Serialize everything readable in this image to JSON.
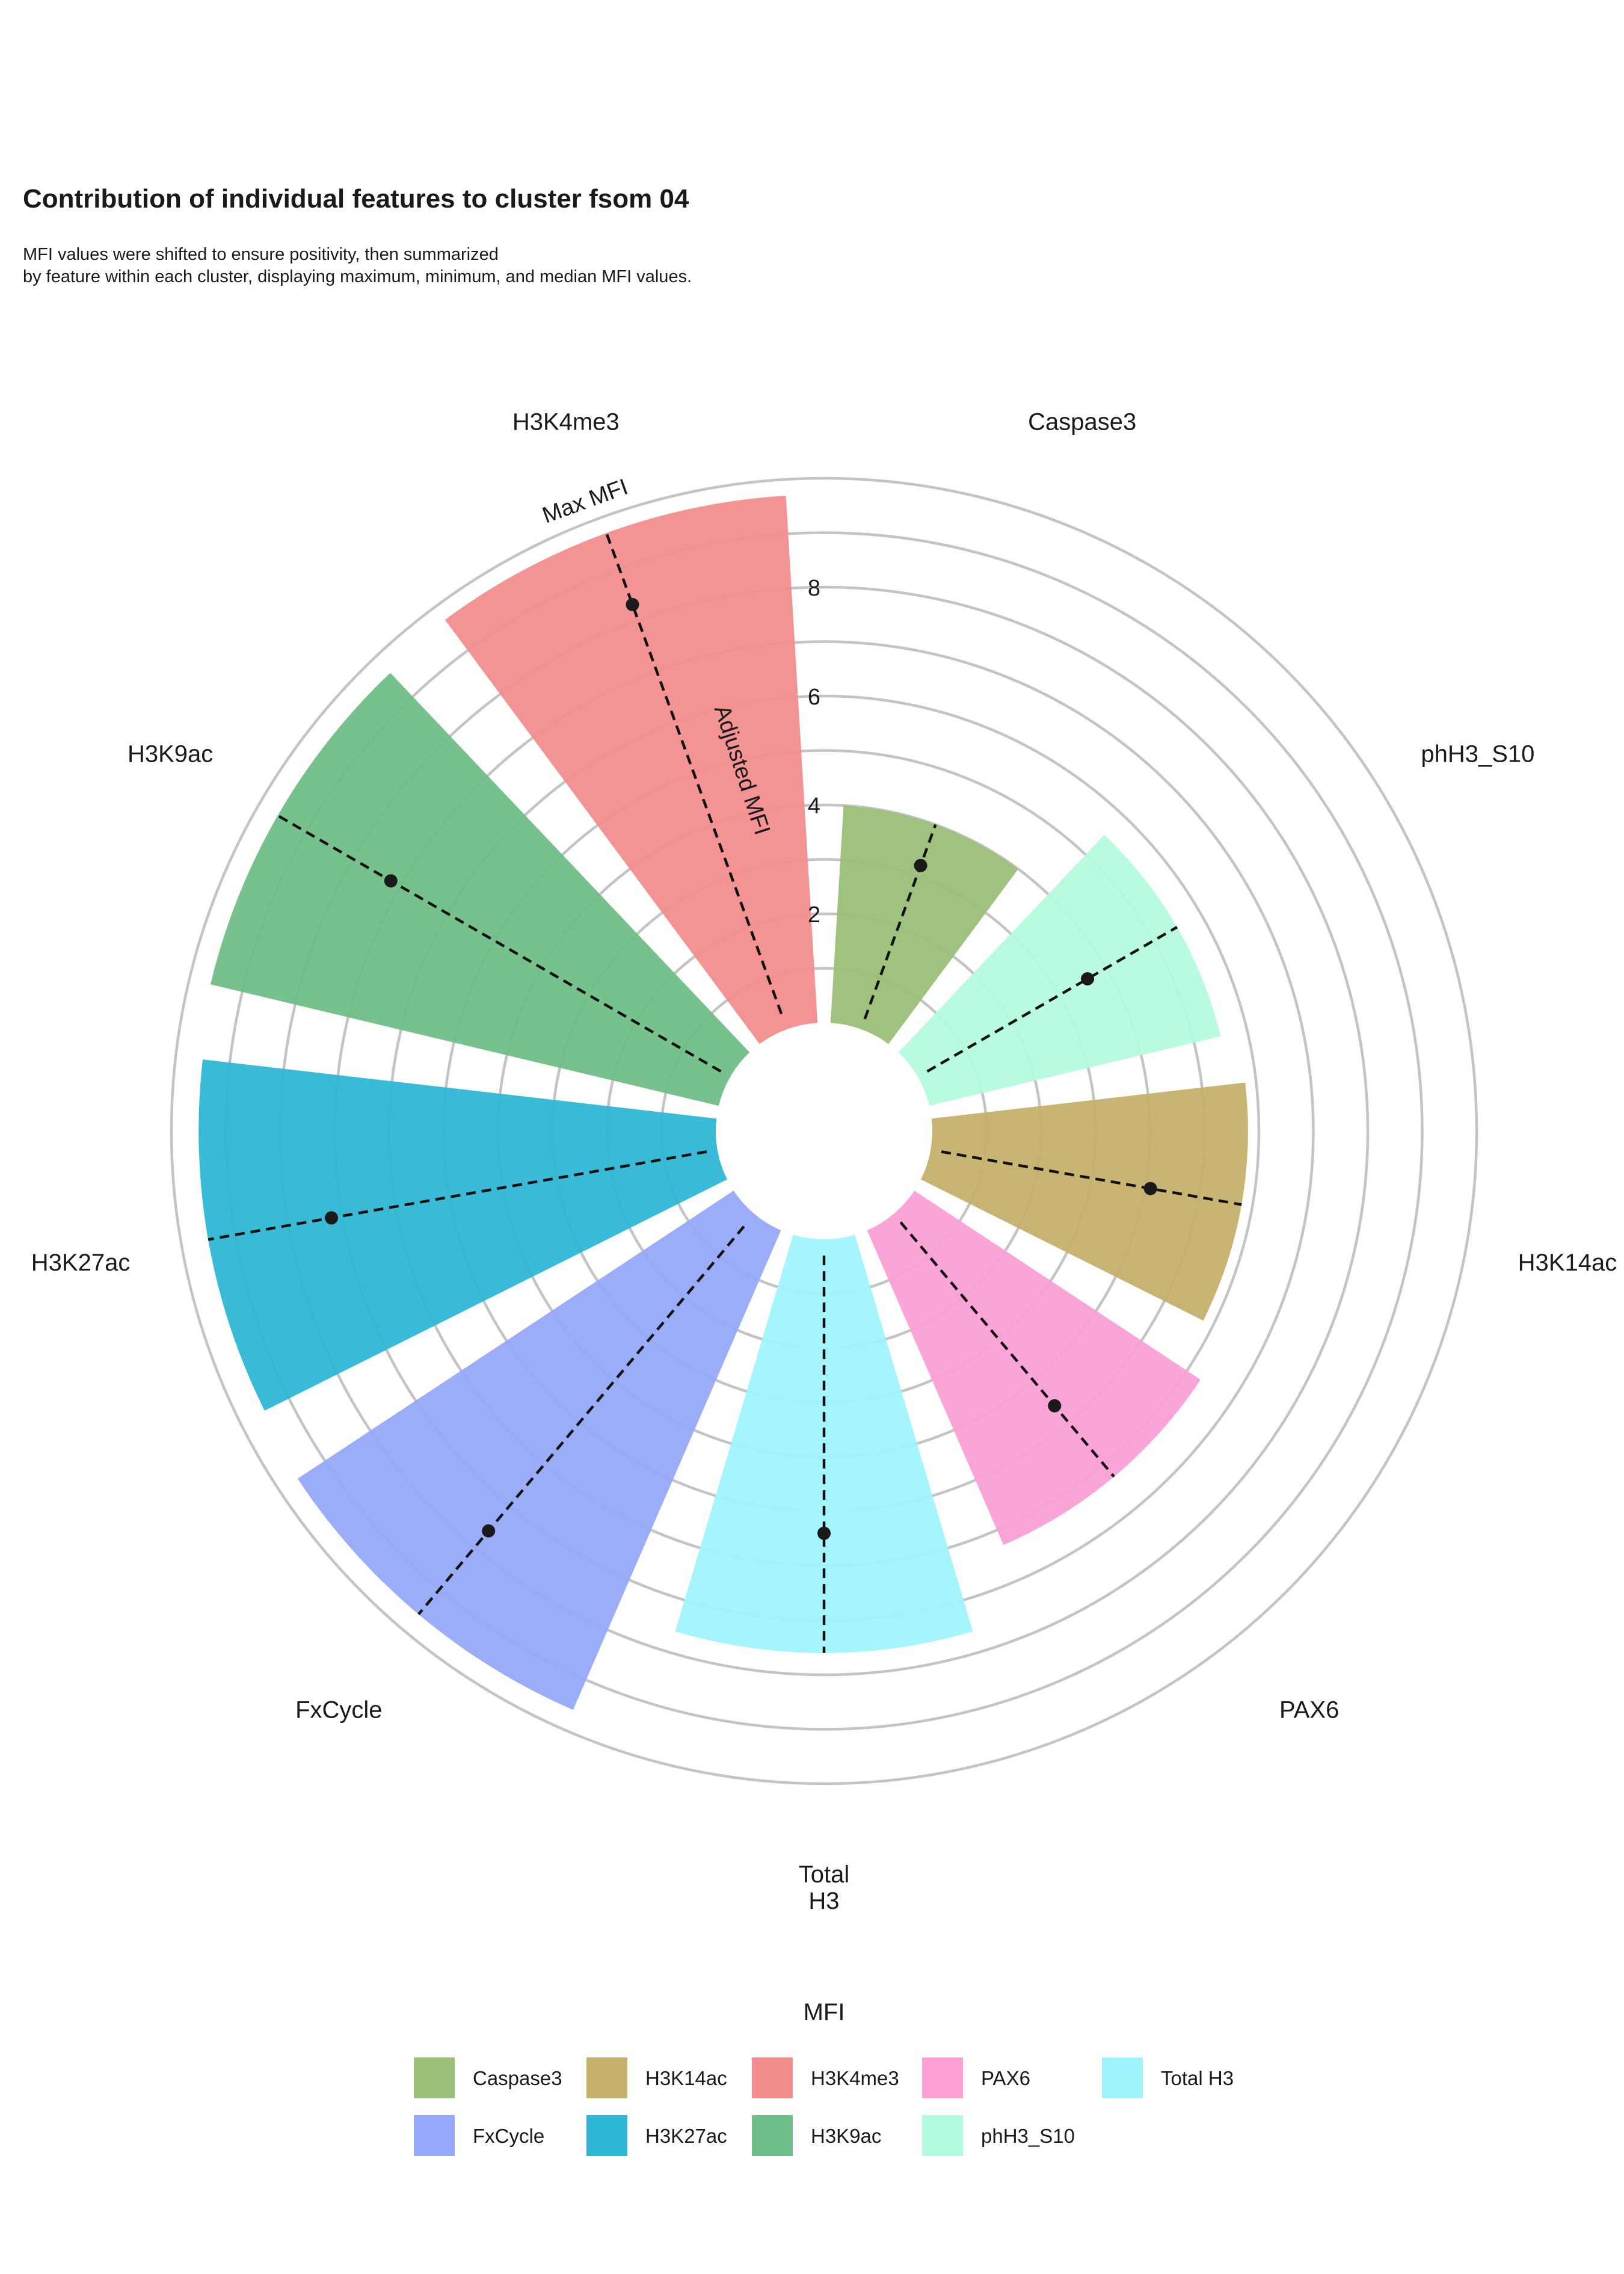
{
  "chart_data": {
    "type": "polar-bar",
    "title": "Contribution of individual features to cluster fsom 04",
    "subtitle_lines": [
      "MFI values were shifted to ensure positivity, then summarized",
      "by feature within each cluster, displaying maximum, minimum, and median MFI values."
    ],
    "radial_axis_label": "Adjusted MFI",
    "max_label": "Max MFI",
    "radial_ticks": [
      2,
      4,
      6,
      8
    ],
    "radial_max": 10,
    "categories": [
      {
        "label": "Caspase3",
        "max": 4.0,
        "min": 0.2,
        "median": 3.2,
        "color": "#9AC077"
      },
      {
        "label": "phH3_S10",
        "max": 5.5,
        "min": 0.2,
        "median": 3.6,
        "color": "#B4FBDD"
      },
      {
        "label": "H3K14ac",
        "max": 5.8,
        "min": 0.2,
        "median": 4.1,
        "color": "#C5B06C"
      },
      {
        "label": "PAX6",
        "max": 6.3,
        "min": 0.2,
        "median": 4.6,
        "color": "#FB9FD6"
      },
      {
        "label": "Total H3",
        "max": 7.6,
        "min": 0.3,
        "median": 5.4,
        "color": "#A0F4FD"
      },
      {
        "label": "FxCycle",
        "max": 9.6,
        "min": 0.3,
        "median": 7.6,
        "color": "#96A8F9"
      },
      {
        "label": "H3K27ac",
        "max": 9.5,
        "min": 0.2,
        "median": 7.2,
        "color": "#2EB7D6"
      },
      {
        "label": "H3K9ac",
        "max": 9.6,
        "min": 0.2,
        "median": 7.2,
        "color": "#70BE87"
      },
      {
        "label": "H3K4me3",
        "max": 9.7,
        "min": 0.3,
        "median": 8.3,
        "color": "#F28D8D"
      }
    ],
    "legend": {
      "title": "MFI",
      "position": "bottom",
      "items": [
        {
          "label": "Caspase3",
          "color": "#9AC077"
        },
        {
          "label": "H3K14ac",
          "color": "#C5B06C"
        },
        {
          "label": "H3K4me3",
          "color": "#F28D8D"
        },
        {
          "label": "PAX6",
          "color": "#FB9FD6"
        },
        {
          "label": "Total H3",
          "color": "#A0F4FD"
        },
        {
          "label": "FxCycle",
          "color": "#96A8F9"
        },
        {
          "label": "H3K27ac",
          "color": "#2EB7D6"
        },
        {
          "label": "H3K9ac",
          "color": "#70BE87"
        },
        {
          "label": "phH3_S10",
          "color": "#B4FBDD"
        }
      ]
    }
  }
}
